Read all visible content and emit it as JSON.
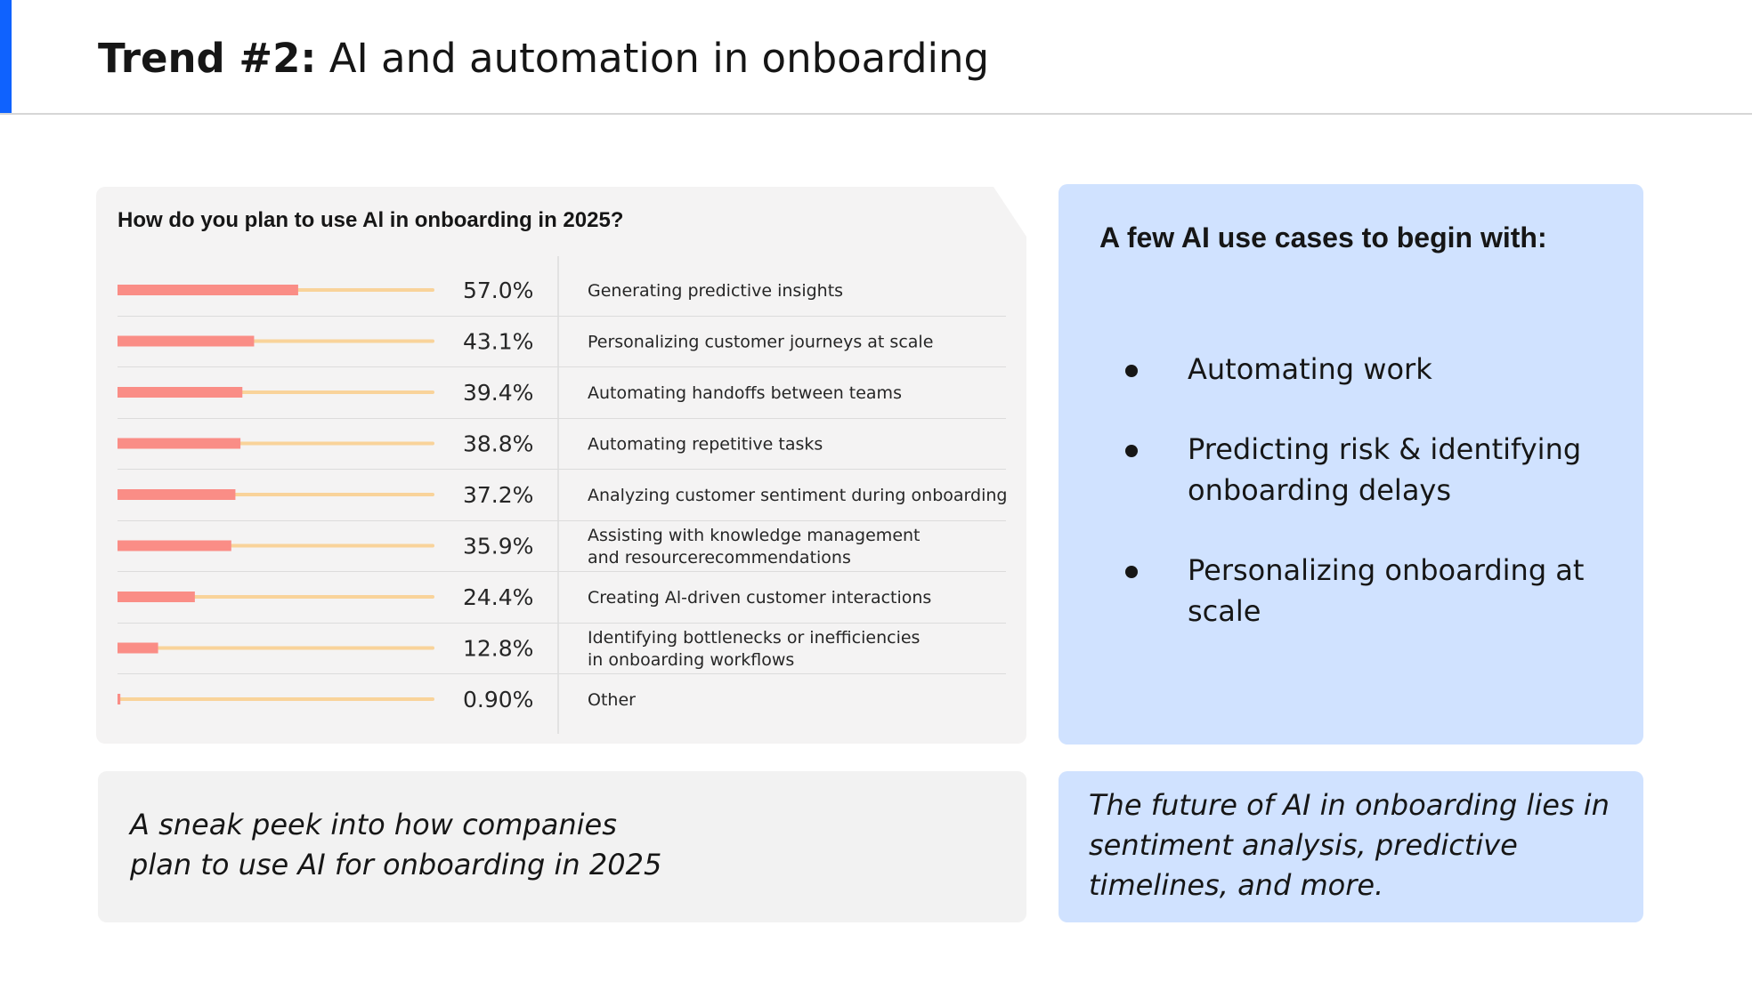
{
  "header": {
    "title_bold": "Trend #2:",
    "title_rest": " AI and automation in onboarding"
  },
  "chart_data": {
    "type": "bar",
    "orientation": "horizontal",
    "title": "How do you plan to use Al in onboarding in 2025?",
    "categories": [
      "Generating predictive insights",
      "Personalizing customer journeys at scale",
      "Automating handoffs between teams",
      "Automating repetitive tasks",
      "Analyzing customer sentiment during onboarding",
      "Assisting with knowledge management and resourcerecommendations",
      "Creating Al-driven customer interactions",
      "Identifying bottlenecks or inefficiencies in onboarding workflows",
      "Other"
    ],
    "category_lines": [
      [
        "Generating predictive insights"
      ],
      [
        "Personalizing customer journeys at scale"
      ],
      [
        "Automating handoffs between teams"
      ],
      [
        "Automating repetitive tasks"
      ],
      [
        "Analyzing customer sentiment during onboarding"
      ],
      [
        "Assisting with knowledge management",
        "and resourcerecommendations"
      ],
      [
        "Creating Al-driven customer interactions"
      ],
      [
        "Identifying bottlenecks or inefficiencies",
        "in onboarding workflows"
      ],
      [
        "Other"
      ]
    ],
    "values": [
      57.0,
      43.1,
      39.4,
      38.8,
      37.2,
      35.9,
      24.4,
      12.8,
      0.9
    ],
    "value_labels": [
      "57.0%",
      "43.1%",
      "39.4%",
      "38.8%",
      "37.2%",
      "35.9%",
      "24.4%",
      "12.8%",
      "0.90%"
    ],
    "xlim": [
      0,
      100
    ],
    "colors": {
      "bar": "#fa8d86",
      "track": "#f9d39a",
      "divider": "#dcdcdc"
    }
  },
  "use_cases": {
    "title": "A few AI use cases to begin with:",
    "items": [
      "Automating work",
      "Predicting risk & identifying onboarding delays",
      "Personalizing onboarding at scale"
    ]
  },
  "peek": {
    "text": "A sneak peek into how companies plan to use AI for onboarding in 2025"
  },
  "future": {
    "text": "The future of AI in onboarding lies in sentiment analysis, predictive timelines, and more."
  },
  "colors": {
    "accent": "#0f62fe",
    "blue_card": "#d0e2ff",
    "gray_card": "#f4f3f3"
  }
}
